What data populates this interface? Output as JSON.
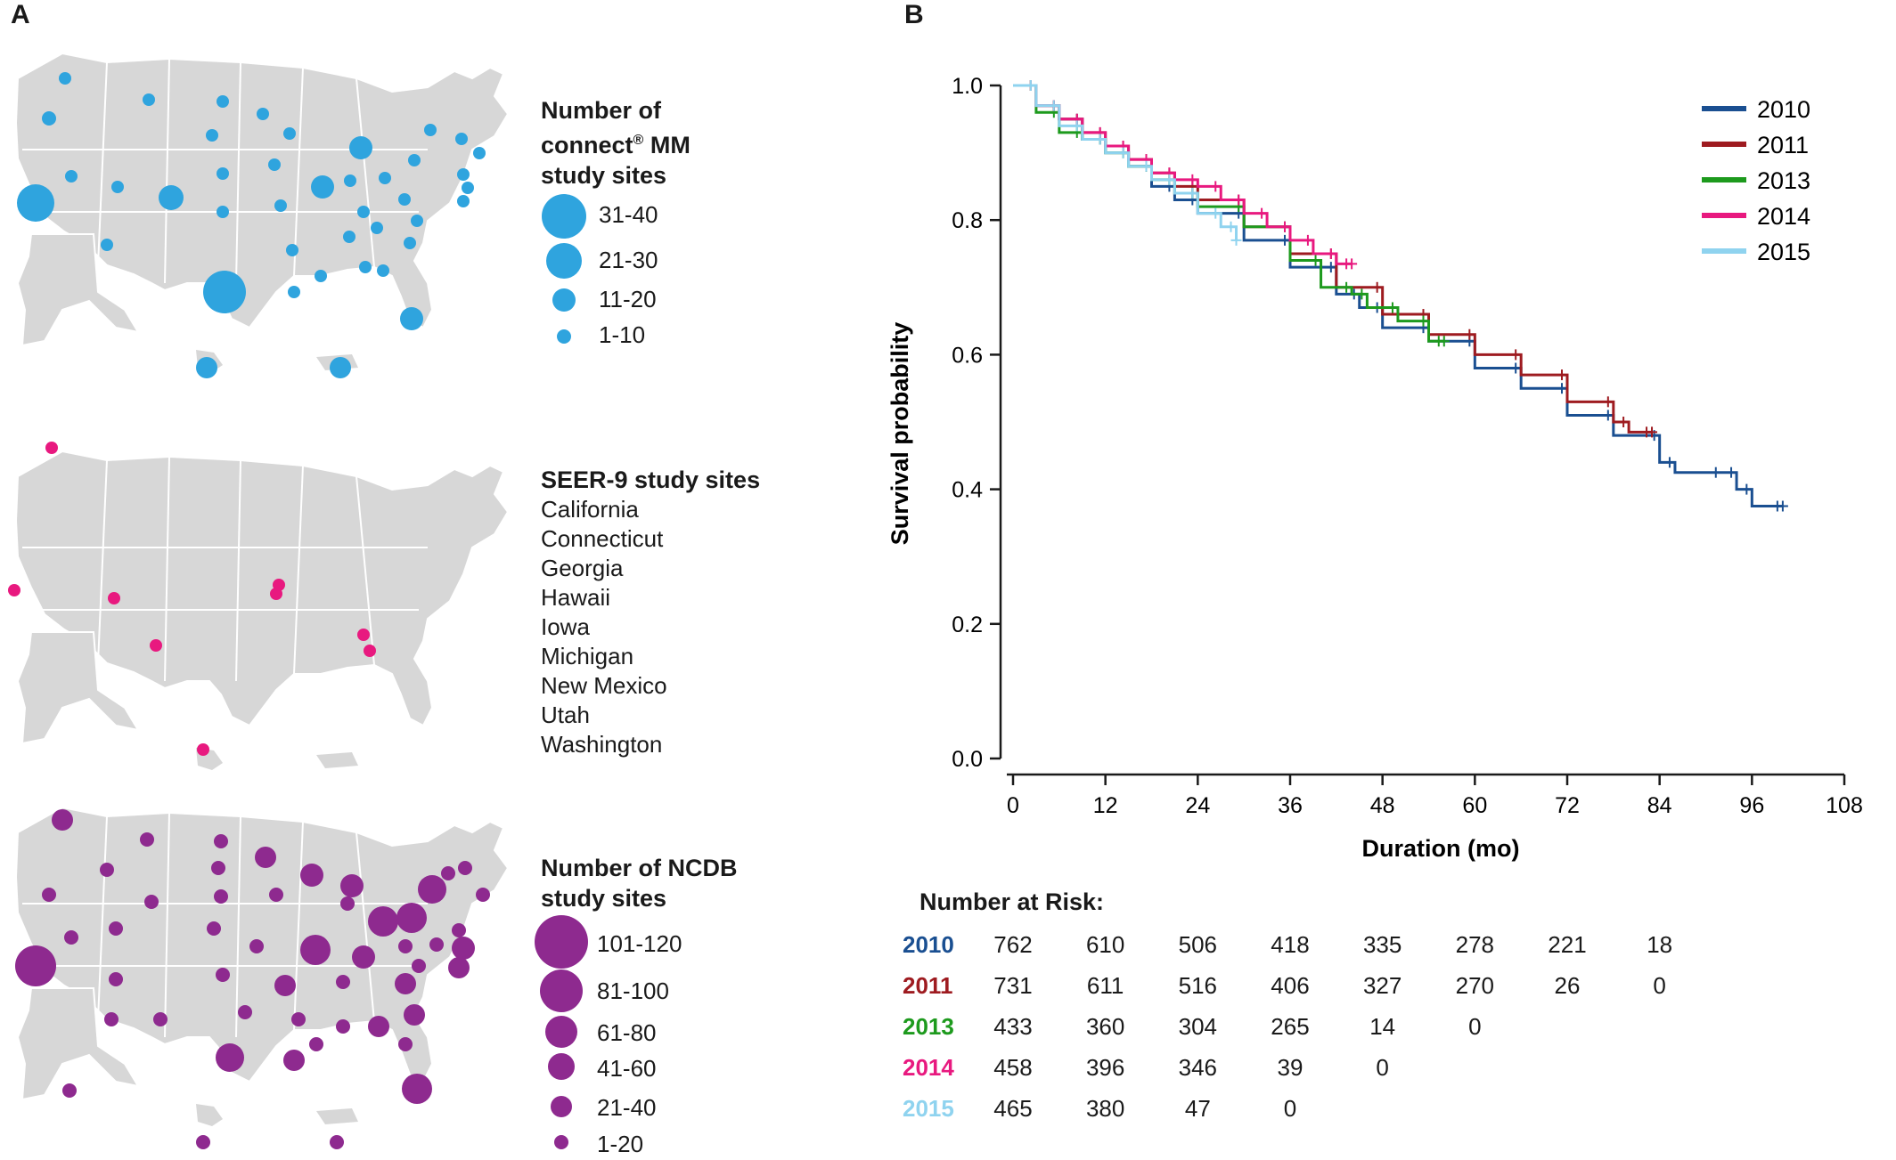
{
  "panel_a": {
    "letter": "A",
    "connect_legend": {
      "title_lines": [
        "Number of",
        "connect® MM",
        "study sites"
      ],
      "title_line2_prefix": "connect",
      "title_line2_sup": "®",
      "title_line2_suffix": " MM",
      "sizes": [
        "31-40",
        "21-30",
        "11-20",
        "1-10"
      ],
      "color": "#2fa4de"
    },
    "seer_legend": {
      "title": "SEER-9 study sites",
      "sites": [
        "California",
        "Connecticut",
        "Georgia",
        "Hawaii",
        "Iowa",
        "Michigan",
        "New Mexico",
        "Utah",
        "Washington"
      ],
      "color": "#e8197f"
    },
    "ncdb_legend": {
      "title_lines": [
        "Number of NCDB",
        "study sites"
      ],
      "sizes": [
        "101-120",
        "81-100",
        "61-80",
        "41-60",
        "21-40",
        "1-20"
      ],
      "color": "#8e2a8f"
    },
    "map_color": "#d7d7d7"
  },
  "panel_b": {
    "letter": "B",
    "risk_table": {
      "title": "Number at Risk:",
      "rows": [
        {
          "year": "2010",
          "color": "#1a4f91",
          "values": [
            "762",
            "610",
            "506",
            "418",
            "335",
            "278",
            "221",
            "18"
          ]
        },
        {
          "year": "2011",
          "color": "#9e1b20",
          "values": [
            "731",
            "611",
            "516",
            "406",
            "327",
            "270",
            "26",
            "0"
          ]
        },
        {
          "year": "2013",
          "color": "#1d9a1d",
          "values": [
            "433",
            "360",
            "304",
            "265",
            "14",
            "0"
          ]
        },
        {
          "year": "2014",
          "color": "#e8197f",
          "values": [
            "458",
            "396",
            "346",
            "39",
            "0"
          ]
        },
        {
          "year": "2015",
          "color": "#8fd3ef",
          "values": [
            "465",
            "380",
            "47",
            "0"
          ]
        }
      ]
    }
  },
  "chart_data": {
    "type": "line",
    "title": "",
    "xlabel": "Duration (mo)",
    "ylabel": "Survival probability",
    "xlim": [
      0,
      108
    ],
    "ylim": [
      0,
      1.0
    ],
    "xticks": [
      0,
      12,
      24,
      36,
      48,
      60,
      72,
      84,
      96,
      108
    ],
    "yticks": [
      "0.0",
      "0.2",
      "0.4",
      "0.6",
      "0.8",
      "1.0"
    ],
    "legend_position": "top-right",
    "series": [
      {
        "name": "2010",
        "color": "#1a4f91",
        "x": [
          0,
          3,
          6,
          9,
          12,
          15,
          18,
          21,
          24,
          30,
          36,
          42,
          45,
          48,
          54,
          60,
          66,
          72,
          78,
          84,
          86,
          92,
          94,
          96,
          100
        ],
        "y": [
          1.0,
          0.97,
          0.95,
          0.92,
          0.9,
          0.88,
          0.85,
          0.83,
          0.81,
          0.77,
          0.73,
          0.69,
          0.67,
          0.64,
          0.62,
          0.58,
          0.55,
          0.51,
          0.48,
          0.44,
          0.425,
          0.425,
          0.4,
          0.375,
          0.375
        ]
      },
      {
        "name": "2011",
        "color": "#9e1b20",
        "x": [
          0,
          3,
          6,
          9,
          12,
          15,
          18,
          21,
          24,
          30,
          36,
          42,
          48,
          54,
          60,
          66,
          72,
          78,
          80,
          83
        ],
        "y": [
          1.0,
          0.97,
          0.95,
          0.93,
          0.91,
          0.89,
          0.87,
          0.85,
          0.83,
          0.79,
          0.75,
          0.7,
          0.66,
          0.63,
          0.6,
          0.57,
          0.53,
          0.5,
          0.485,
          0.485
        ]
      },
      {
        "name": "2013",
        "color": "#1d9a1d",
        "x": [
          0,
          3,
          6,
          9,
          12,
          15,
          18,
          21,
          24,
          30,
          36,
          40,
          44,
          46,
          50,
          54,
          56
        ],
        "y": [
          1.0,
          0.96,
          0.93,
          0.92,
          0.9,
          0.88,
          0.86,
          0.84,
          0.82,
          0.79,
          0.74,
          0.7,
          0.69,
          0.67,
          0.65,
          0.62,
          0.62
        ]
      },
      {
        "name": "2014",
        "color": "#e8197f",
        "x": [
          0,
          3,
          6,
          9,
          12,
          15,
          18,
          21,
          24,
          27,
          30,
          33,
          36,
          39,
          42,
          44
        ],
        "y": [
          1.0,
          0.97,
          0.95,
          0.93,
          0.91,
          0.89,
          0.87,
          0.86,
          0.85,
          0.83,
          0.81,
          0.79,
          0.77,
          0.75,
          0.735,
          0.735
        ]
      },
      {
        "name": "2015",
        "color": "#8fd3ef",
        "x": [
          0,
          3,
          6,
          9,
          12,
          15,
          18,
          21,
          24,
          27,
          29
        ],
        "y": [
          1.0,
          0.97,
          0.94,
          0.92,
          0.9,
          0.88,
          0.86,
          0.84,
          0.81,
          0.79,
          0.77
        ]
      }
    ]
  }
}
